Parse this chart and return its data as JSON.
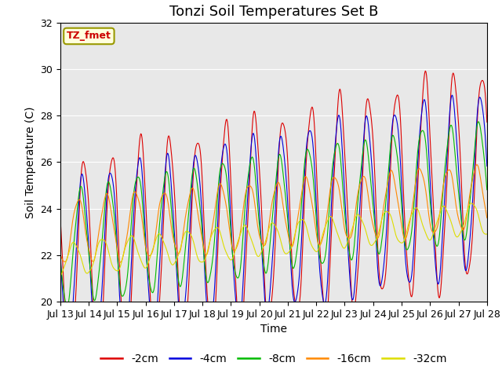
{
  "title": "Tonzi Soil Temperatures Set B",
  "xlabel": "Time",
  "ylabel": "Soil Temperature (C)",
  "ylim": [
    20,
    32
  ],
  "annotation": "TZ_fmet",
  "annotation_color": "#cc0000",
  "annotation_bg": "#ffffdd",
  "annotation_border": "#999900",
  "bg_color": "#e8e8e8",
  "legend_labels": [
    "-2cm",
    "-4cm",
    "-8cm",
    "-16cm",
    "-32cm"
  ],
  "line_colors": [
    "#dd0000",
    "#0000dd",
    "#00bb00",
    "#ff8800",
    "#dddd00"
  ],
  "x_tick_labels": [
    "Jul 13",
    "Jul 14",
    "Jul 15",
    "Jul 16",
    "Jul 17",
    "Jul 18",
    "Jul 19",
    "Jul 20",
    "Jul 21",
    "Jul 22",
    "Jul 23",
    "Jul 24",
    "Jul 25",
    "Jul 26",
    "Jul 27",
    "Jul 28"
  ],
  "title_fontsize": 13,
  "label_fontsize": 10,
  "tick_fontsize": 9
}
